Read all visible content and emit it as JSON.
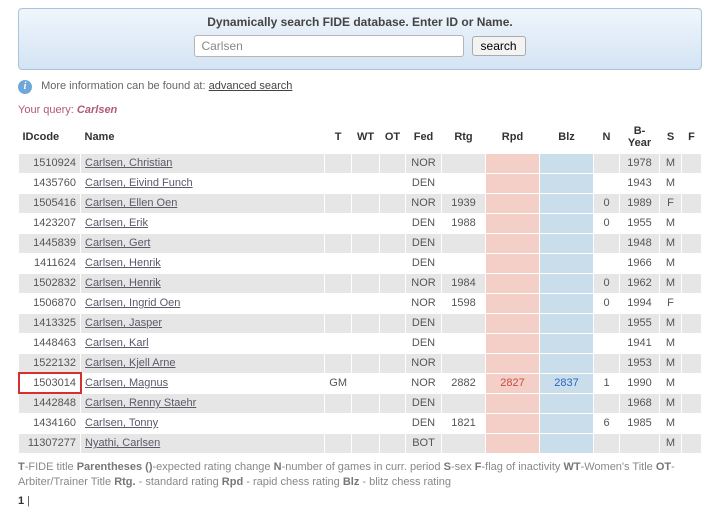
{
  "search": {
    "heading": "Dynamically search FIDE database. Enter ID or Name.",
    "value": "Carlsen",
    "button": "search"
  },
  "info": {
    "text": "More information can be found at:",
    "link": "advanced search"
  },
  "query": {
    "label": "Your query:",
    "value": "Carlsen"
  },
  "columns": {
    "id": "IDcode",
    "name": "Name",
    "t": "T",
    "wt": "WT",
    "ot": "OT",
    "fed": "Fed",
    "rtg": "Rtg",
    "rpd": "Rpd",
    "blz": "Blz",
    "n": "N",
    "byear": "B-Year",
    "s": "S",
    "f": "F"
  },
  "rows": [
    {
      "id": "1510924",
      "name": "Carlsen, Christian",
      "t": "",
      "wt": "",
      "ot": "",
      "fed": "NOR",
      "rtg": "",
      "rpd": "",
      "blz": "",
      "n": "",
      "byear": "1978",
      "s": "M",
      "f": "",
      "hl": false
    },
    {
      "id": "1435760",
      "name": "Carlsen, Eivind Funch",
      "t": "",
      "wt": "",
      "ot": "",
      "fed": "DEN",
      "rtg": "",
      "rpd": "",
      "blz": "",
      "n": "",
      "byear": "1943",
      "s": "M",
      "f": "",
      "hl": false
    },
    {
      "id": "1505416",
      "name": "Carlsen, Ellen Oen",
      "t": "",
      "wt": "",
      "ot": "",
      "fed": "NOR",
      "rtg": "1939",
      "rpd": "",
      "blz": "",
      "n": "0",
      "byear": "1989",
      "s": "F",
      "f": "",
      "hl": false
    },
    {
      "id": "1423207",
      "name": "Carlsen, Erik",
      "t": "",
      "wt": "",
      "ot": "",
      "fed": "DEN",
      "rtg": "1988",
      "rpd": "",
      "blz": "",
      "n": "0",
      "byear": "1955",
      "s": "M",
      "f": "",
      "hl": false
    },
    {
      "id": "1445839",
      "name": "Carlsen, Gert",
      "t": "",
      "wt": "",
      "ot": "",
      "fed": "DEN",
      "rtg": "",
      "rpd": "",
      "blz": "",
      "n": "",
      "byear": "1948",
      "s": "M",
      "f": "",
      "hl": false
    },
    {
      "id": "1411624",
      "name": "Carlsen, Henrik",
      "t": "",
      "wt": "",
      "ot": "",
      "fed": "DEN",
      "rtg": "",
      "rpd": "",
      "blz": "",
      "n": "",
      "byear": "1966",
      "s": "M",
      "f": "",
      "hl": false
    },
    {
      "id": "1502832",
      "name": "Carlsen, Henrik",
      "t": "",
      "wt": "",
      "ot": "",
      "fed": "NOR",
      "rtg": "1984",
      "rpd": "",
      "blz": "",
      "n": "0",
      "byear": "1962",
      "s": "M",
      "f": "",
      "hl": false
    },
    {
      "id": "1506870",
      "name": "Carlsen, Ingrid Oen",
      "t": "",
      "wt": "",
      "ot": "",
      "fed": "NOR",
      "rtg": "1598",
      "rpd": "",
      "blz": "",
      "n": "0",
      "byear": "1994",
      "s": "F",
      "f": "",
      "hl": false
    },
    {
      "id": "1413325",
      "name": "Carlsen, Jasper",
      "t": "",
      "wt": "",
      "ot": "",
      "fed": "DEN",
      "rtg": "",
      "rpd": "",
      "blz": "",
      "n": "",
      "byear": "1955",
      "s": "M",
      "f": "",
      "hl": false
    },
    {
      "id": "1448463",
      "name": "Carlsen, Karl",
      "t": "",
      "wt": "",
      "ot": "",
      "fed": "DEN",
      "rtg": "",
      "rpd": "",
      "blz": "",
      "n": "",
      "byear": "1941",
      "s": "M",
      "f": "",
      "hl": false
    },
    {
      "id": "1522132",
      "name": "Carlsen, Kjell Arne",
      "t": "",
      "wt": "",
      "ot": "",
      "fed": "NOR",
      "rtg": "",
      "rpd": "",
      "blz": "",
      "n": "",
      "byear": "1953",
      "s": "M",
      "f": "",
      "hl": false
    },
    {
      "id": "1503014",
      "name": "Carlsen, Magnus",
      "t": "GM",
      "wt": "",
      "ot": "",
      "fed": "NOR",
      "rtg": "2882",
      "rpd": "2827",
      "blz": "2837",
      "n": "1",
      "byear": "1990",
      "s": "M",
      "f": "",
      "hl": true
    },
    {
      "id": "1442848",
      "name": "Carlsen, Renny Staehr",
      "t": "",
      "wt": "",
      "ot": "",
      "fed": "DEN",
      "rtg": "",
      "rpd": "",
      "blz": "",
      "n": "",
      "byear": "1968",
      "s": "M",
      "f": "",
      "hl": false
    },
    {
      "id": "1434160",
      "name": "Carlsen, Tonny",
      "t": "",
      "wt": "",
      "ot": "",
      "fed": "DEN",
      "rtg": "1821",
      "rpd": "",
      "blz": "",
      "n": "6",
      "byear": "1985",
      "s": "M",
      "f": "",
      "hl": false
    },
    {
      "id": "11307277",
      "name": "Nyathi, Carlsen",
      "t": "",
      "wt": "",
      "ot": "",
      "fed": "BOT",
      "rtg": "",
      "rpd": "",
      "blz": "",
      "n": "",
      "byear": "",
      "s": "M",
      "f": "",
      "hl": false
    }
  ],
  "legend": {
    "t": "T",
    "t_desc": "-FIDE title",
    "par": "Parentheses ()",
    "par_desc": "-expected rating change",
    "n": "N",
    "n_desc": "-number of games in curr. period ",
    "s": "S",
    "s_desc": "-sex",
    "f": "F",
    "f_desc": "-flag of inactivity",
    "wt": "WT",
    "wt_desc": "-Women's Title",
    "ot": "OT",
    "ot_desc": "-Arbiter/Trainer Title",
    "rtg": "Rtg.",
    "rtg_desc": " - standard rating ",
    "rpd": "Rpd",
    "rpd_desc": " - rapid chess rating ",
    "blz": "Blz",
    "blz_desc": " - blitz chess rating"
  },
  "pager": {
    "current": "1",
    "sep": " |"
  }
}
